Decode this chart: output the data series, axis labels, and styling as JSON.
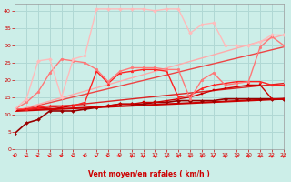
{
  "xlabel": "Vent moyen/en rafales ( km/h )",
  "xlim": [
    0,
    23
  ],
  "ylim": [
    0,
    42
  ],
  "yticks": [
    0,
    5,
    10,
    15,
    20,
    25,
    30,
    35,
    40
  ],
  "xticks": [
    0,
    1,
    2,
    3,
    4,
    5,
    6,
    7,
    8,
    9,
    10,
    11,
    12,
    13,
    14,
    15,
    16,
    17,
    18,
    19,
    20,
    21,
    22,
    23
  ],
  "bg_color": "#cceee8",
  "grid_color": "#b0d8d4",
  "series": [
    {
      "x": [
        0,
        1,
        2,
        3,
        4,
        5,
        6,
        7,
        8,
        9,
        10,
        11,
        12,
        13,
        14,
        15,
        16,
        17,
        18,
        19,
        20,
        21,
        22,
        23
      ],
      "y": [
        4.5,
        7.5,
        8.5,
        11.0,
        11.0,
        11.0,
        11.5,
        12.0,
        12.5,
        13.0,
        13.0,
        13.0,
        13.5,
        13.5,
        14.0,
        14.0,
        14.0,
        14.0,
        14.5,
        14.5,
        14.5,
        14.5,
        14.5,
        14.5
      ],
      "color": "#990000",
      "lw": 1.2,
      "marker": "D",
      "ms": 2.0
    },
    {
      "x": [
        0,
        23
      ],
      "y": [
        11.0,
        14.5
      ],
      "color": "#cc0000",
      "lw": 1.5,
      "marker": null,
      "ms": 0
    },
    {
      "x": [
        0,
        23
      ],
      "y": [
        11.0,
        19.0
      ],
      "color": "#dd2222",
      "lw": 1.0,
      "marker": null,
      "ms": 0
    },
    {
      "x": [
        0,
        23
      ],
      "y": [
        11.0,
        29.5
      ],
      "color": "#ee4444",
      "lw": 1.0,
      "marker": null,
      "ms": 0
    },
    {
      "x": [
        0,
        23
      ],
      "y": [
        11.0,
        33.0
      ],
      "color": "#ffaaaa",
      "lw": 1.0,
      "marker": null,
      "ms": 0
    },
    {
      "x": [
        0,
        1,
        2,
        3,
        4,
        5,
        6,
        7,
        8,
        9,
        10,
        11,
        12,
        13,
        14,
        15,
        16,
        17,
        18,
        19,
        20,
        21,
        22,
        23
      ],
      "y": [
        11.0,
        11.5,
        12.0,
        11.5,
        12.0,
        12.5,
        12.5,
        12.0,
        12.5,
        13.0,
        13.0,
        13.5,
        13.5,
        14.0,
        14.5,
        15.0,
        16.0,
        17.0,
        17.5,
        18.0,
        18.5,
        18.5,
        14.5,
        14.5
      ],
      "color": "#cc0000",
      "lw": 1.0,
      "marker": "s",
      "ms": 2.0
    },
    {
      "x": [
        0,
        1,
        2,
        3,
        4,
        5,
        6,
        7,
        8,
        9,
        10,
        11,
        12,
        13,
        14,
        15,
        16,
        17,
        18,
        19,
        20,
        21,
        22,
        23
      ],
      "y": [
        11.5,
        11.5,
        12.0,
        12.5,
        12.5,
        12.5,
        13.5,
        22.5,
        19.0,
        22.0,
        22.5,
        23.0,
        23.0,
        22.5,
        15.0,
        15.5,
        17.5,
        18.5,
        19.0,
        19.5,
        19.5,
        19.5,
        18.5,
        18.5
      ],
      "color": "#ff2222",
      "lw": 1.0,
      "marker": "^",
      "ms": 2.0
    },
    {
      "x": [
        0,
        1,
        2,
        3,
        4,
        5,
        6,
        7,
        8,
        9,
        10,
        11,
        12,
        13,
        14,
        15,
        16,
        17,
        18,
        19,
        20,
        21,
        22,
        23
      ],
      "y": [
        11.5,
        13.5,
        16.5,
        22.0,
        26.0,
        25.5,
        25.0,
        23.0,
        19.5,
        22.5,
        23.5,
        23.5,
        23.5,
        23.0,
        23.0,
        14.5,
        20.0,
        22.0,
        18.5,
        19.0,
        19.5,
        29.5,
        32.5,
        30.0
      ],
      "color": "#ff7777",
      "lw": 1.0,
      "marker": "o",
      "ms": 2.0
    },
    {
      "x": [
        0,
        1,
        2,
        3,
        4,
        5,
        6,
        7,
        8,
        9,
        10,
        11,
        12,
        13,
        14,
        15,
        16,
        17,
        18,
        19,
        20,
        21,
        22,
        23
      ],
      "y": [
        11.5,
        14.5,
        25.5,
        26.0,
        15.0,
        26.0,
        27.0,
        40.5,
        40.5,
        40.5,
        40.5,
        40.5,
        40.0,
        40.5,
        40.5,
        33.5,
        36.0,
        36.5,
        30.0,
        30.0,
        30.0,
        31.0,
        33.0,
        33.0
      ],
      "color": "#ffbbbb",
      "lw": 1.0,
      "marker": "D",
      "ms": 2.0
    }
  ],
  "arrow_color": "#cc0000",
  "arrow_color2": "#ff0000",
  "xlabel_color": "#cc0000",
  "tick_color": "#cc0000"
}
